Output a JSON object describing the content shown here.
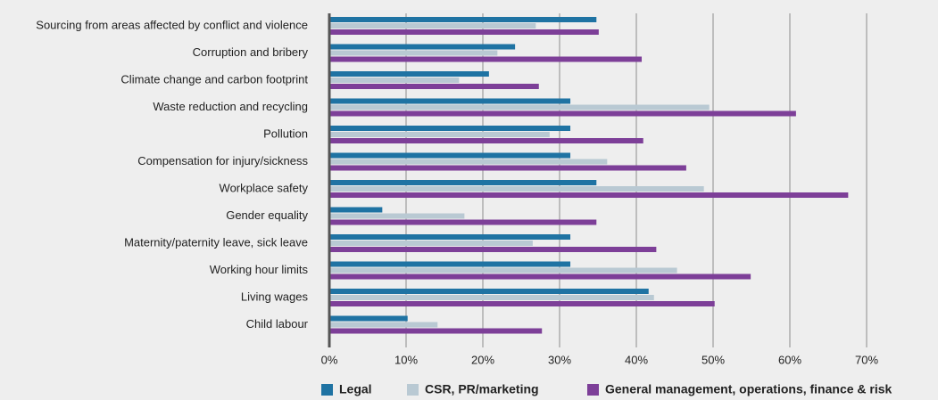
{
  "chart_data": {
    "type": "hbar",
    "categories": [
      "Sourcing from areas affected by conflict and violence",
      "Corruption and bribery",
      "Climate change and carbon footprint",
      "Waste reduction and recycling",
      "Pollution",
      "Compensation for injury/sickness",
      "Workplace safety",
      "Gender equality",
      "Maternity/paternity leave, sick leave",
      "Working hour limits",
      "Living wages",
      "Child labour"
    ],
    "series": [
      {
        "name": "Legal",
        "color": "#1f73a3",
        "values": [
          34.8,
          24.2,
          20.8,
          31.4,
          31.4,
          31.4,
          34.8,
          6.9,
          31.4,
          31.4,
          41.6,
          10.2
        ]
      },
      {
        "name": "CSR, PR/marketing",
        "color": "#b9c9d3",
        "values": [
          26.9,
          21.9,
          16.9,
          49.5,
          28.7,
          36.2,
          48.8,
          17.6,
          26.5,
          45.3,
          42.3,
          14.1
        ]
      },
      {
        "name": "General management, operations, finance & risk",
        "color": "#7d3f98",
        "values": [
          35.1,
          40.7,
          27.3,
          60.8,
          40.9,
          46.5,
          67.6,
          34.8,
          42.6,
          54.9,
          50.2,
          27.7
        ]
      }
    ],
    "xlim": [
      0,
      70
    ],
    "xticks": [
      {
        "value": 0,
        "label": "0%"
      },
      {
        "value": 10,
        "label": "10%"
      },
      {
        "value": 20,
        "label": "20%"
      },
      {
        "value": 30,
        "label": "30%"
      },
      {
        "value": 40,
        "label": "40%"
      },
      {
        "value": 50,
        "label": "50%"
      },
      {
        "value": 60,
        "label": "60%"
      },
      {
        "value": 70,
        "label": "70%"
      }
    ],
    "grid": true,
    "legend": "bottom"
  }
}
